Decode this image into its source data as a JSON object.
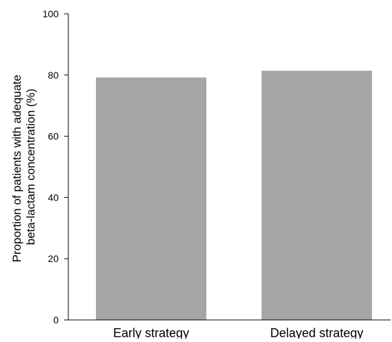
{
  "chart_data": {
    "type": "bar",
    "categories": [
      "Early strategy",
      "Delayed strategy"
    ],
    "values": [
      79.2,
      81.4
    ],
    "ylabel_lines": [
      "Proportion of patients with adequate",
      "beta-lactam concentration (%)"
    ],
    "xlabel": "",
    "title": "",
    "ylim": [
      0,
      100
    ],
    "yticks": [
      0,
      20,
      40,
      60,
      80,
      100
    ],
    "grid": false,
    "legend": "none",
    "bar_color": "#a6a6a6",
    "axis_color": "#000000"
  }
}
